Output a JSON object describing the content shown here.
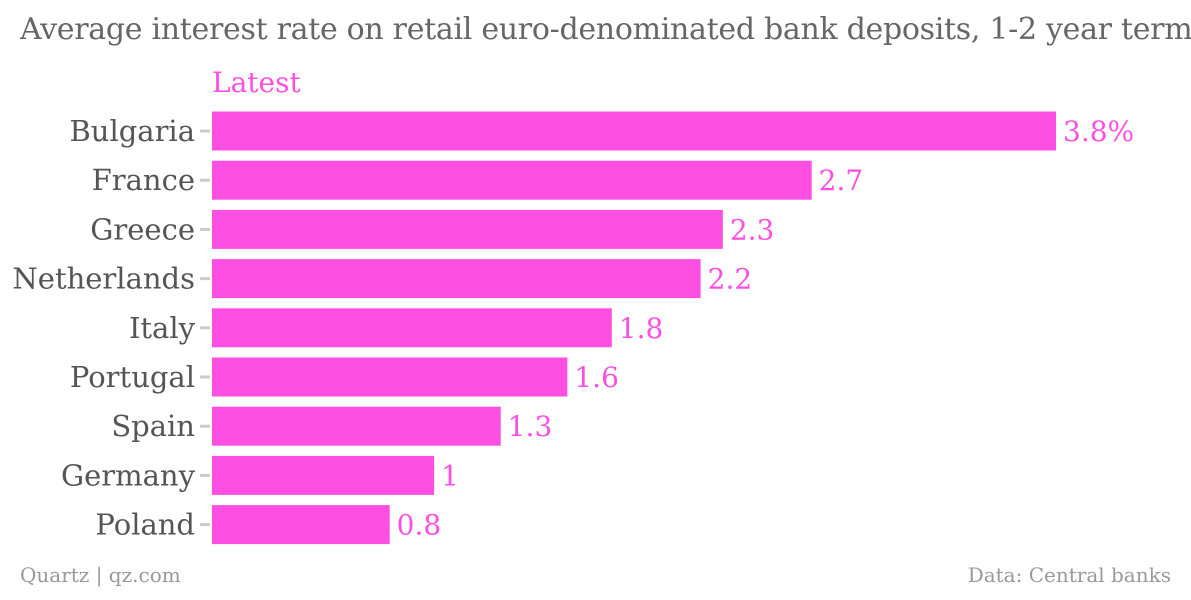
{
  "chart_data": {
    "type": "bar",
    "orientation": "horizontal",
    "title": "Average interest rate on retail euro-denominated bank deposits, 1-2 year term",
    "categories": [
      "Bulgaria",
      "France",
      "Greece",
      "Netherlands",
      "Italy",
      "Portugal",
      "Spain",
      "Germany",
      "Poland"
    ],
    "series": [
      {
        "name": "Latest",
        "values": [
          3.8,
          2.7,
          2.3,
          2.2,
          1.8,
          1.6,
          1.3,
          1,
          0.8
        ],
        "labels": [
          "3.8%",
          "2.7",
          "2.3",
          "2.2",
          "1.8",
          "1.6",
          "1.3",
          "1",
          "0.8"
        ]
      }
    ],
    "xlim": [
      0,
      3.8
    ],
    "legend_position": "top-left",
    "grid": false,
    "colors": {
      "bar": "#ff4fe3",
      "value_label": "#ff4fe3",
      "legend": "#ff4fe3"
    }
  },
  "footer": {
    "credit": "Quartz | qz.com",
    "source": "Data: Central banks"
  }
}
